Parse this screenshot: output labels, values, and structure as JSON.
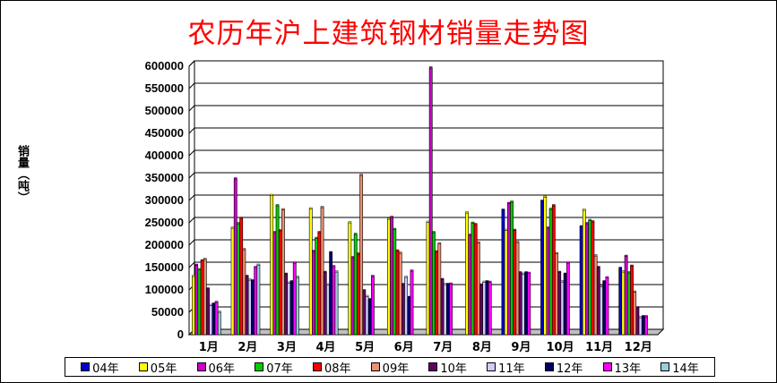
{
  "title": "农历年沪上建筑钢材销量走势图",
  "ylabel": "销量（吨）",
  "chart_data": {
    "type": "bar",
    "title": "农历年沪上建筑钢材销量走势图",
    "ylabel": "销量（吨）",
    "xlabel": "",
    "ylim": [
      0,
      600000
    ],
    "yticks": [
      "0",
      "50000",
      "100000",
      "150000",
      "200000",
      "250000",
      "300000",
      "350000",
      "400000",
      "450000",
      "500000",
      "550000",
      "600000"
    ],
    "grid": true,
    "legend_position": "bottom",
    "categories": [
      "1月",
      "2月",
      "3月",
      "4月",
      "5月",
      "6月",
      "7月",
      "8月",
      "9月",
      "10月",
      "11月",
      "12月"
    ],
    "series": [
      {
        "name": "04年",
        "color": "#0000cc",
        "values": [
          null,
          null,
          null,
          null,
          null,
          null,
          null,
          null,
          278000,
          298000,
          241000,
          148000
        ]
      },
      {
        "name": "05年",
        "color": "#ffff00",
        "values": [
          130000,
          238000,
          311000,
          281000,
          250000,
          258000,
          251000,
          272000,
          233000,
          307000,
          278000,
          140000
        ]
      },
      {
        "name": "06年",
        "color": "#cc00cc",
        "values": [
          155000,
          348000,
          228000,
          186000,
          172000,
          262000,
          596000,
          222000,
          293000,
          238000,
          248000,
          175000
        ]
      },
      {
        "name": "07年",
        "color": "#00cc00",
        "values": [
          145000,
          248000,
          288000,
          215000,
          224000,
          235000,
          228000,
          249000,
          296000,
          280000,
          255000,
          138000
        ]
      },
      {
        "name": "08年",
        "color": "#ff0000",
        "values": [
          165000,
          260000,
          232000,
          228000,
          180000,
          187000,
          185000,
          246000,
          233000,
          288000,
          252000,
          153000
        ]
      },
      {
        "name": "09年",
        "color": "#e89070",
        "values": [
          168000,
          190000,
          279000,
          284000,
          356000,
          182000,
          203000,
          205000,
          206000,
          181000,
          176000,
          95000
        ]
      },
      {
        "name": "10年",
        "color": "#660066",
        "values": [
          102000,
          130000,
          135000,
          139000,
          98000,
          112000,
          123000,
          111000,
          138000,
          139000,
          150000,
          60000
        ]
      },
      {
        "name": "11年",
        "color": "#ccccff",
        "values": [
          65000,
          122000,
          115000,
          111000,
          85000,
          128000,
          112000,
          117000,
          135000,
          118000,
          107000,
          38000
        ]
      },
      {
        "name": "12年",
        "color": "#000066",
        "values": [
          68000,
          120000,
          118000,
          183000,
          78000,
          83000,
          112000,
          118000,
          138000,
          135000,
          118000,
          40000
        ]
      },
      {
        "name": "13年",
        "color": "#ff00ff",
        "values": [
          72000,
          150000,
          160000,
          152000,
          130000,
          142000,
          113000,
          117000,
          137000,
          160000,
          127000,
          40000
        ]
      },
      {
        "name": "14年",
        "color": "#99ccdd",
        "values": [
          50000,
          155000,
          128000,
          140000,
          null,
          null,
          null,
          null,
          null,
          null,
          null,
          null
        ]
      }
    ]
  }
}
